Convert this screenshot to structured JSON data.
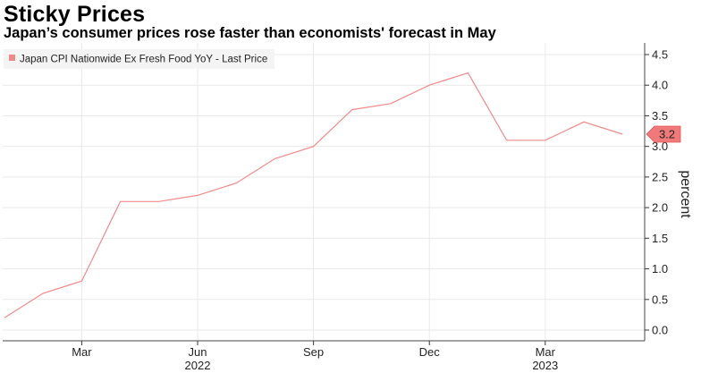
{
  "title": "Sticky Prices",
  "subtitle": "Japan’s consumer prices rose faster than economists' forecast in May",
  "chart_data": {
    "type": "line",
    "title": "Sticky Prices",
    "subtitle": "Japan’s consumer prices rose faster than economists' forecast in May",
    "ylabel": "percent",
    "xlabel": "",
    "ylim": [
      0.0,
      4.5
    ],
    "y_ticks": [
      "0.0",
      "0.5",
      "1.0",
      "1.5",
      "2.0",
      "2.5",
      "3.0",
      "3.5",
      "4.0",
      "4.5"
    ],
    "x_ticks": [
      {
        "label": "Mar",
        "index": 2
      },
      {
        "label": "Jun",
        "index": 5
      },
      {
        "label": "Sep",
        "index": 8
      },
      {
        "label": "Dec",
        "index": 11
      },
      {
        "label": "Mar",
        "index": 14
      }
    ],
    "years": [
      {
        "label": "2022",
        "index": 5
      },
      {
        "label": "2023",
        "index": 14
      }
    ],
    "legend": "Japan CPI Nationwide Ex Fresh Food YoY - Last Price",
    "last_value_label": "3.2",
    "series": [
      {
        "name": "Japan CPI Nationwide Ex Fresh Food YoY - Last Price",
        "color": "#f08a8a",
        "x": [
          "Jan 2022",
          "Feb 2022",
          "Mar 2022",
          "Apr 2022",
          "May 2022",
          "Jun 2022",
          "Jul 2022",
          "Aug 2022",
          "Sep 2022",
          "Oct 2022",
          "Nov 2022",
          "Dec 2022",
          "Jan 2023",
          "Feb 2023",
          "Mar 2023",
          "Apr 2023",
          "May 2023"
        ],
        "values": [
          0.2,
          0.6,
          0.8,
          2.1,
          2.1,
          2.2,
          2.4,
          2.8,
          3.0,
          3.6,
          3.7,
          4.0,
          4.2,
          3.1,
          3.1,
          3.4,
          3.2
        ]
      }
    ]
  }
}
